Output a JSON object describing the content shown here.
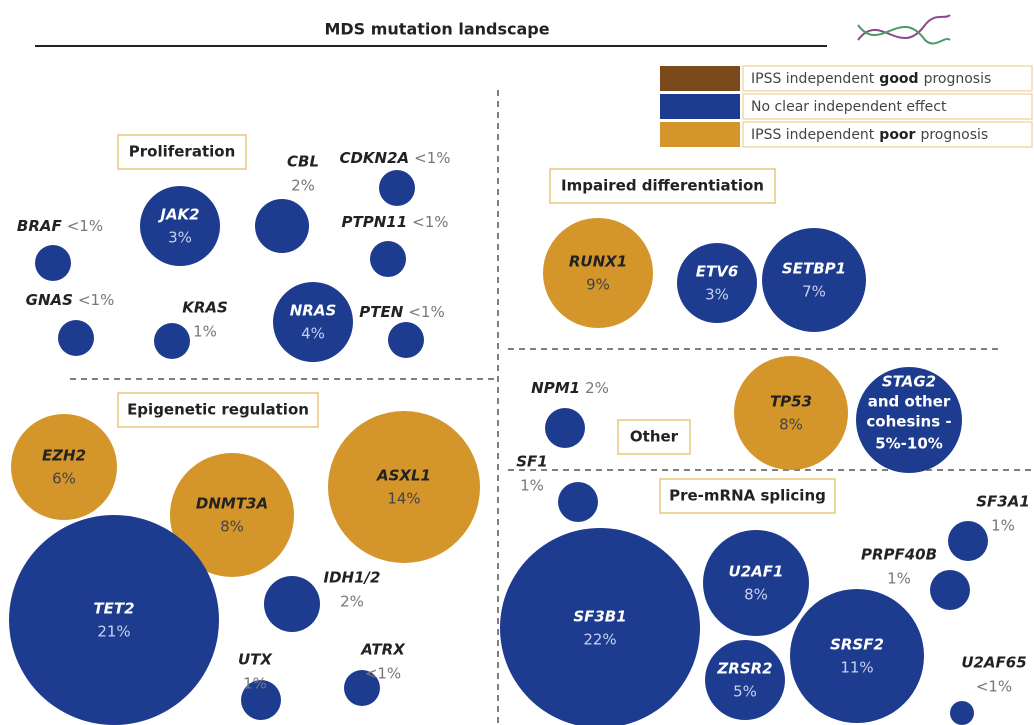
{
  "title": "MDS mutation landscape",
  "legend": [
    {
      "before": "IPSS independent",
      "emphasis": "good",
      "after": "prognosis",
      "color": "#7b4a1c"
    },
    {
      "before": "No clear independent effect",
      "color": "#1d3b8f"
    },
    {
      "before": "IPSS independent",
      "emphasis": "poor",
      "after": "prognosis",
      "color": "#d4952b"
    }
  ],
  "groups": [
    {
      "label": "Proliferation"
    },
    {
      "label": "Impaired differentiation"
    },
    {
      "label": "Other"
    },
    {
      "label": "Epigenetic regulation"
    },
    {
      "label": "Pre-mRNA splicing"
    }
  ],
  "genes": [
    {
      "name": "CDKN2A",
      "frequency": "<1%",
      "color": "#1d3b8f"
    },
    {
      "name": "CBL",
      "frequency": "2%",
      "color": "#1d3b8f"
    },
    {
      "name": "JAK2",
      "frequency": "3%",
      "color": "#1d3b8f"
    },
    {
      "name": "PTPN11",
      "frequency": "<1%",
      "color": "#1d3b8f"
    },
    {
      "name": "BRAF",
      "frequency": "<1%",
      "color": "#1d3b8f"
    },
    {
      "name": "GNAS",
      "frequency": "<1%",
      "color": "#1d3b8f"
    },
    {
      "name": "KRAS",
      "frequency": "1%",
      "color": "#1d3b8f"
    },
    {
      "name": "NRAS",
      "frequency": "4%",
      "color": "#1d3b8f"
    },
    {
      "name": "PTEN",
      "frequency": "<1%",
      "color": "#1d3b8f"
    },
    {
      "name": "RUNX1",
      "frequency": "9%",
      "color": "#d4952b"
    },
    {
      "name": "ETV6",
      "frequency": "3%",
      "color": "#1d3b8f"
    },
    {
      "name": "SETBP1",
      "frequency": "7%",
      "color": "#1d3b8f"
    },
    {
      "name": "NPM1",
      "frequency": "2%",
      "color": "#1d3b8f"
    },
    {
      "name": "TP53",
      "frequency": "8%",
      "color": "#d4952b"
    },
    {
      "name": "STAG2",
      "note": [
        "and other",
        "cohesins -"
      ],
      "frequency": "5%-10%",
      "color": "#1d3b8f"
    },
    {
      "name": "EZH2",
      "frequency": "6%",
      "color": "#d4952b"
    },
    {
      "name": "DNMT3A",
      "frequency": "8%",
      "color": "#d4952b"
    },
    {
      "name": "ASXL1",
      "frequency": "14%",
      "color": "#d4952b"
    },
    {
      "name": "TET2",
      "frequency": "21%",
      "color": "#1d3b8f"
    },
    {
      "name": "IDH1/2",
      "frequency": "2%",
      "color": "#1d3b8f"
    },
    {
      "name": "UTX",
      "frequency": "1%",
      "color": "#1d3b8f"
    },
    {
      "name": "ATRX",
      "frequency": "<1%",
      "color": "#1d3b8f"
    },
    {
      "name": "SF1",
      "frequency": "1%",
      "color": "#1d3b8f"
    },
    {
      "name": "SF3B1",
      "frequency": "22%",
      "color": "#1d3b8f"
    },
    {
      "name": "U2AF1",
      "frequency": "8%",
      "color": "#1d3b8f"
    },
    {
      "name": "SF3A1",
      "frequency": "1%",
      "color": "#1d3b8f"
    },
    {
      "name": "PRPF40B",
      "frequency": "1%",
      "color": "#1d3b8f"
    },
    {
      "name": "ZRSR2",
      "frequency": "5%",
      "color": "#1d3b8f"
    },
    {
      "name": "SRSF2",
      "frequency": "11%",
      "color": "#1d3b8f"
    },
    {
      "name": "U2AF65",
      "frequency": "<1%",
      "color": "#1d3b8f"
    }
  ]
}
